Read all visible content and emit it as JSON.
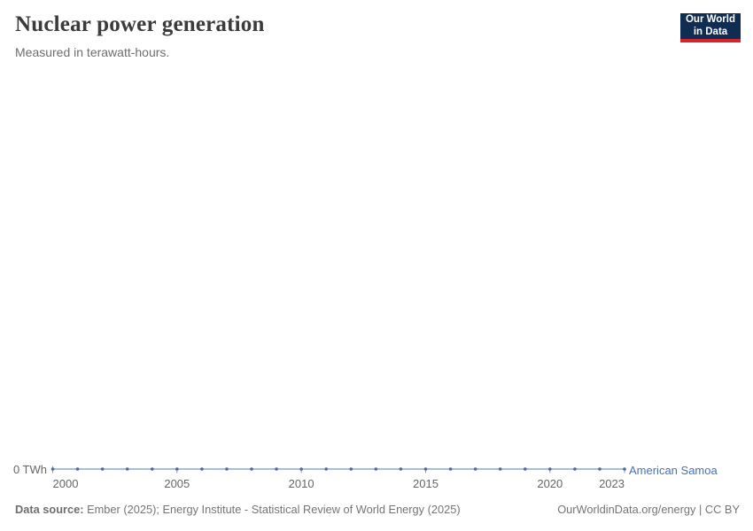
{
  "header": {
    "title": "Nuclear power generation",
    "subtitle": "Measured in terawatt-hours."
  },
  "logo": {
    "line1": "Our World",
    "line2": "in Data",
    "bg_color": "#0f2d52",
    "accent_color": "#d8232a"
  },
  "chart": {
    "y_axis_label": "0 TWh",
    "series_label": "American Samoa"
  },
  "chart_data": {
    "type": "line",
    "title": "Nuclear power generation",
    "subtitle": "Measured in terawatt-hours.",
    "xlabel": "",
    "ylabel": "TWh",
    "xlim": [
      2000,
      2023
    ],
    "ylim": [
      0,
      0
    ],
    "grid": false,
    "legend_position": "end-of-line",
    "x_ticks": [
      2000,
      2005,
      2010,
      2015,
      2020,
      2023
    ],
    "y_ticks": [
      0
    ],
    "series": [
      {
        "name": "American Samoa",
        "x": [
          2000,
          2001,
          2002,
          2003,
          2004,
          2005,
          2006,
          2007,
          2008,
          2009,
          2010,
          2011,
          2012,
          2013,
          2014,
          2015,
          2016,
          2017,
          2018,
          2019,
          2020,
          2021,
          2022,
          2023
        ],
        "values": [
          0,
          0,
          0,
          0,
          0,
          0,
          0,
          0,
          0,
          0,
          0,
          0,
          0,
          0,
          0,
          0,
          0,
          0,
          0,
          0,
          0,
          0,
          0,
          0
        ]
      }
    ],
    "colors": {
      "line": "#a8bedd",
      "marker": "#4c6a9c",
      "series_label": "#4a6fb8",
      "axis_tick": "#999999",
      "tick_text": "#666666"
    }
  },
  "footer": {
    "source_label": "Data source:",
    "source_text": "Ember (2025); Energy Institute - Statistical Review of World Energy (2025)",
    "link_text": "OurWorldinData.org/energy | CC BY"
  }
}
